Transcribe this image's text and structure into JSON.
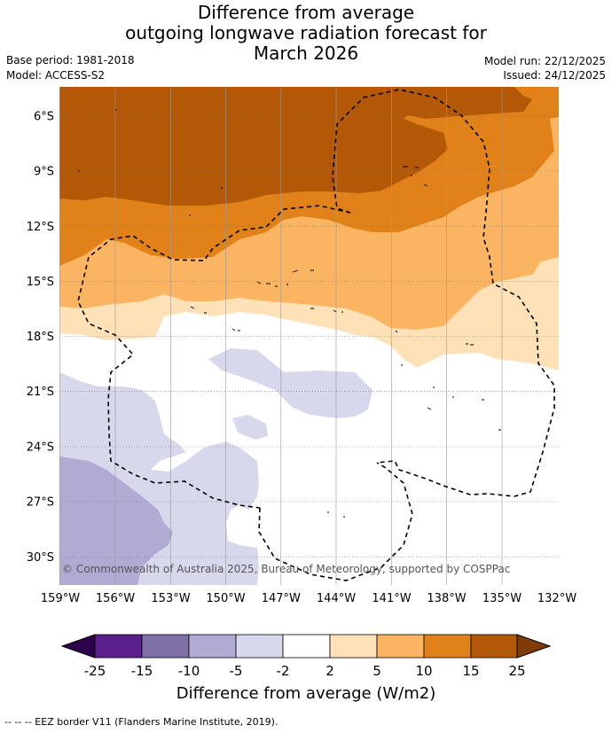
{
  "title": {
    "line1": "Difference from average",
    "line2": "outgoing longwave radiation forecast for",
    "line3": "March 2026"
  },
  "meta": {
    "base_period": "Base period: 1981-2018",
    "model": "Model: ACCESS-S2",
    "model_run": "Model run: 22/12/2025",
    "issued": "Issued: 24/12/2025"
  },
  "map": {
    "copyright": "© Commonwealth of Australia 2025, Bureau of Meteorology, supported by COSPPac",
    "lat_labels": [
      "6°S",
      "9°S",
      "12°S",
      "15°S",
      "18°S",
      "21°S",
      "24°S",
      "27°S",
      "30°S"
    ],
    "lon_labels": [
      "159°W",
      "156°W",
      "153°W",
      "150°W",
      "147°W",
      "144°W",
      "141°W",
      "138°W",
      "135°W",
      "132°W"
    ]
  },
  "colorbar": {
    "ticks": [
      "-25",
      "-15",
      "-10",
      "-5",
      "-2",
      "2",
      "5",
      "10",
      "15",
      "25"
    ],
    "colors": [
      "#5a1f8a",
      "#8070a8",
      "#b1aad2",
      "#d8d8ec",
      "#ffffff",
      "#fee1b6",
      "#fbb562",
      "#e08219",
      "#b35806"
    ],
    "under_color": "#2d004b",
    "over_color": "#7f3b08",
    "label": "Difference from average (W/m2)"
  },
  "footer": {
    "legend_text": "--  --  -- EEZ border V11 (Flanders Marine Institute, 2019)."
  }
}
